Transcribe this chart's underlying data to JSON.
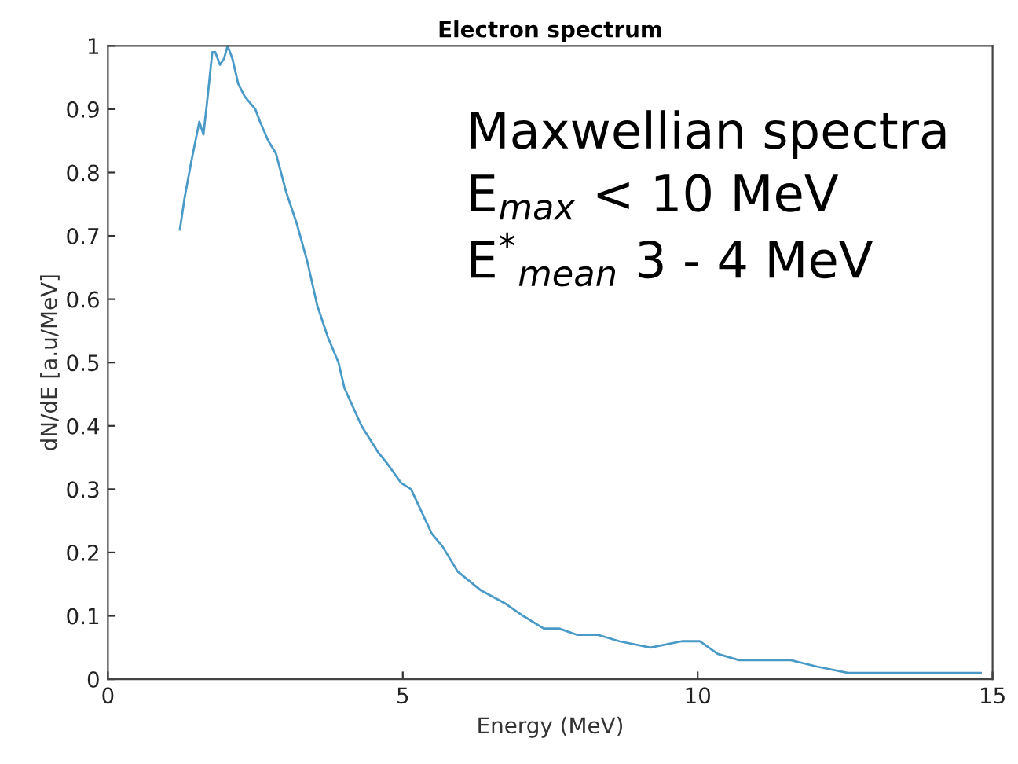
{
  "chart_data": {
    "type": "line",
    "title": "Electron spectrum",
    "xlabel": "Energy (MeV)",
    "ylabel": "dN/dE [a.u/MeV]",
    "x": [
      1.22,
      1.3,
      1.42,
      1.55,
      1.62,
      1.68,
      1.77,
      1.82,
      1.9,
      1.97,
      2.03,
      2.11,
      2.21,
      2.32,
      2.41,
      2.5,
      2.58,
      2.72,
      2.85,
      3.02,
      3.2,
      3.38,
      3.55,
      3.73,
      3.91,
      4.01,
      4.3,
      4.57,
      4.74,
      4.97,
      5.14,
      5.49,
      5.67,
      5.93,
      6.33,
      6.73,
      7.04,
      7.39,
      7.65,
      7.96,
      8.31,
      8.67,
      9.2,
      9.73,
      10.04,
      10.34,
      10.7,
      11.05,
      11.31,
      11.58,
      12.02,
      12.55,
      13.25,
      13.61,
      14.31,
      14.8
    ],
    "series": [
      {
        "color": "#4a9ac8",
        "values": [
          0.71,
          0.76,
          0.82,
          0.88,
          0.86,
          0.91,
          0.99,
          0.99,
          0.97,
          0.98,
          1.0,
          0.98,
          0.94,
          0.92,
          0.91,
          0.9,
          0.88,
          0.85,
          0.83,
          0.77,
          0.72,
          0.66,
          0.59,
          0.54,
          0.5,
          0.46,
          0.4,
          0.36,
          0.34,
          0.31,
          0.3,
          0.23,
          0.21,
          0.17,
          0.14,
          0.12,
          0.1,
          0.08,
          0.08,
          0.07,
          0.07,
          0.06,
          0.05,
          0.06,
          0.06,
          0.04,
          0.03,
          0.03,
          0.03,
          0.03,
          0.02,
          0.01,
          0.01,
          0.01,
          0.01,
          0.01
        ]
      }
    ],
    "xlim": [
      0,
      15
    ],
    "xticks": [
      0,
      5,
      10,
      15
    ],
    "ylim": [
      0,
      1
    ],
    "yticks": [
      0,
      0.1,
      0.2,
      0.3,
      0.4,
      0.5,
      0.6,
      0.7,
      0.8,
      0.9,
      1
    ],
    "annotations": [
      "Maxwellian spectra",
      "E$_{max}$ < 10 MeV",
      "E$^{*}$$_{mean}$ 3 - 4 MeV"
    ],
    "grid": false,
    "legend": false,
    "marker": "none",
    "line_style": "solid"
  }
}
